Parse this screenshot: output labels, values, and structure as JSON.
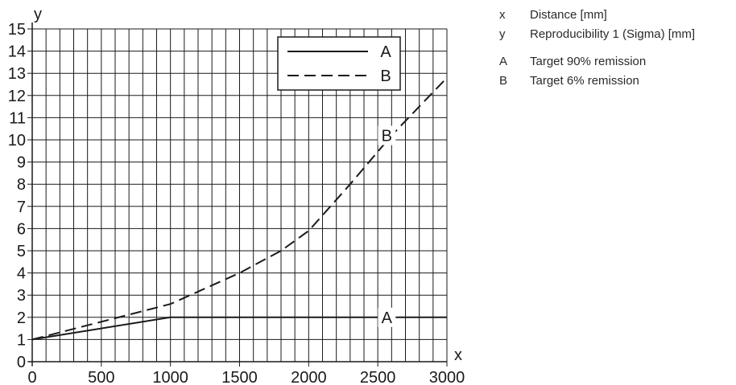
{
  "chart_data": {
    "type": "line",
    "xlabel": "x",
    "ylabel": "y",
    "xlim": [
      0,
      3000
    ],
    "ylim": [
      0,
      15
    ],
    "x_ticks": [
      0,
      500,
      1000,
      1500,
      2000,
      2500,
      3000
    ],
    "y_ticks": [
      0,
      1,
      2,
      3,
      4,
      5,
      6,
      7,
      8,
      9,
      10,
      11,
      12,
      13,
      14,
      15
    ],
    "grid": true,
    "legend_position": "top-right",
    "series": [
      {
        "name": "A",
        "style": "solid",
        "x": [
          0,
          1000,
          3000
        ],
        "y": [
          1,
          2,
          2
        ]
      },
      {
        "name": "B",
        "style": "dashed",
        "x": [
          0,
          1000,
          1500,
          1800,
          2000,
          2300,
          2600,
          2800,
          3000
        ],
        "y": [
          1,
          2.6,
          4.0,
          5.0,
          5.9,
          8.0,
          10.2,
          11.5,
          12.8
        ]
      }
    ],
    "annotations": [
      {
        "text": "B",
        "series": "B",
        "x": 2600
      },
      {
        "text": "A",
        "series": "A",
        "x": 2600
      }
    ],
    "legend": [
      {
        "key": "A",
        "style": "solid"
      },
      {
        "key": "B",
        "style": "dashed"
      }
    ]
  },
  "side_legend": [
    {
      "key": "x",
      "text": "Distance [mm]"
    },
    {
      "key": "y",
      "text": "Reproducibility 1 (Sigma) [mm]"
    },
    {
      "key": "A",
      "text": "Target 90% remission"
    },
    {
      "key": "B",
      "text": "Target 6% remission"
    }
  ],
  "colors": {
    "line": "#1a1a1a",
    "grid": "#1a1a1a",
    "background": "#ffffff"
  }
}
